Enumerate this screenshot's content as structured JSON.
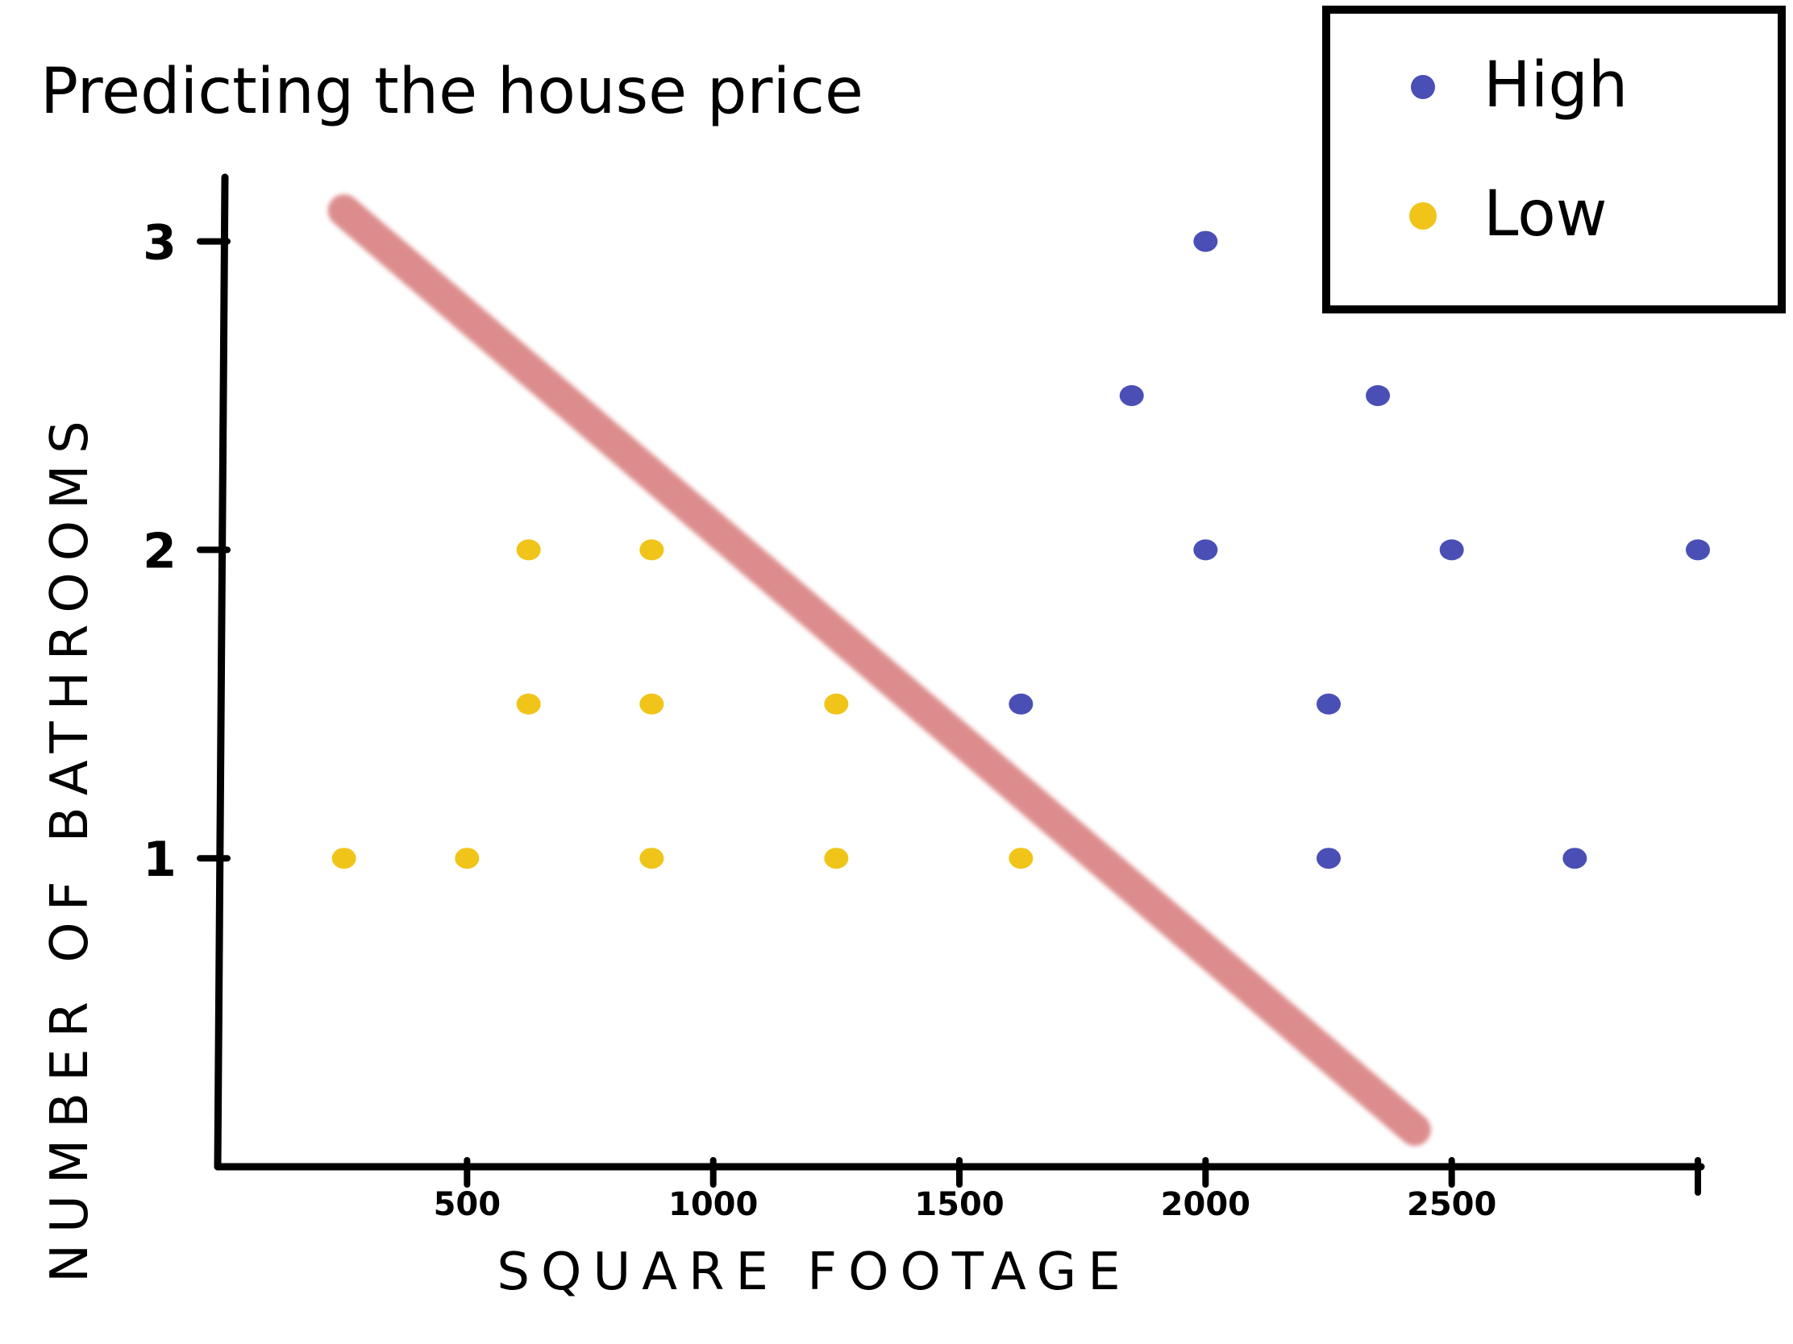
{
  "chart_data": {
    "type": "scatter",
    "title": "Predicting the house price",
    "xlabel": "SQUARE FOOTAGE",
    "ylabel": "NUMBER OF BATHROOMS",
    "xlim": [
      0,
      3000
    ],
    "ylim": [
      0,
      3.2
    ],
    "xticks": [
      "500",
      "1000",
      "1500",
      "2000",
      "2500"
    ],
    "yticks": [
      "1",
      "2",
      "3"
    ],
    "legend": {
      "position": "top-right",
      "entries": [
        "High",
        "Low"
      ]
    },
    "colors": {
      "High": "#4a4fb5",
      "Low": "#f0c419",
      "boundary": "#d98080"
    },
    "series": [
      {
        "name": "High",
        "points": [
          [
            2000,
            3
          ],
          [
            1850,
            2.5
          ],
          [
            2350,
            2.5
          ],
          [
            2000,
            2
          ],
          [
            2500,
            2
          ],
          [
            3000,
            2
          ],
          [
            1625,
            1.5
          ],
          [
            2250,
            1.5
          ],
          [
            2250,
            1
          ],
          [
            2750,
            1
          ]
        ]
      },
      {
        "name": "Low",
        "points": [
          [
            625,
            2
          ],
          [
            875,
            2
          ],
          [
            625,
            1.5
          ],
          [
            875,
            1.5
          ],
          [
            1250,
            1.5
          ],
          [
            250,
            1
          ],
          [
            500,
            1
          ],
          [
            875,
            1
          ],
          [
            1250,
            1
          ],
          [
            1625,
            1
          ]
        ]
      }
    ],
    "decision_boundary": [
      [
        250,
        3.1
      ],
      [
        2425,
        0.12
      ]
    ]
  }
}
